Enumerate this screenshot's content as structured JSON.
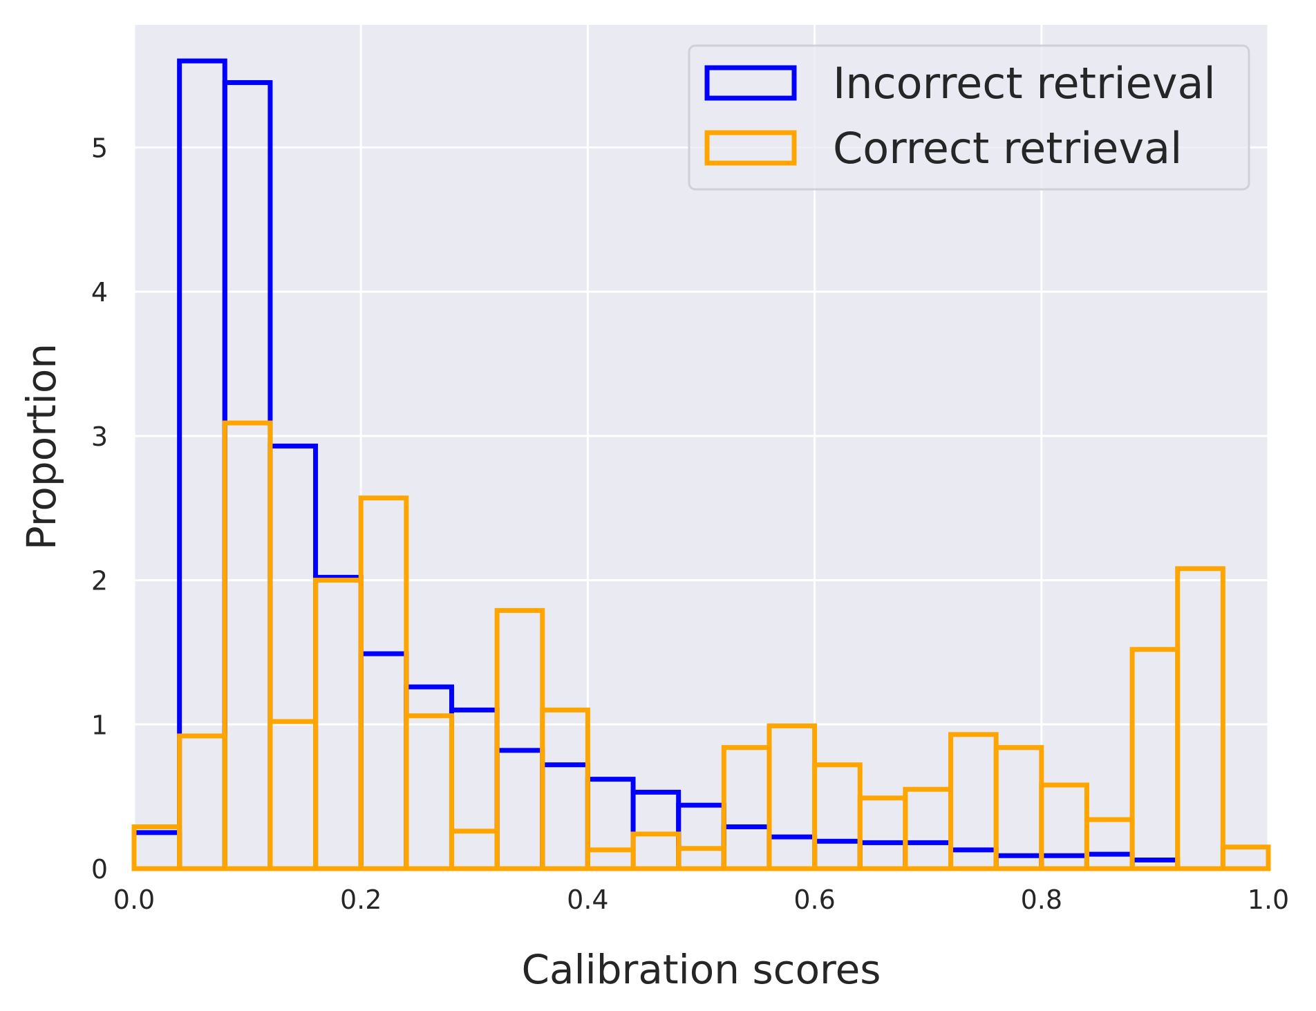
{
  "chart_data": {
    "type": "histogram",
    "xlabel": "Calibration scores",
    "ylabel": "Proportion",
    "xlim": [
      0.0,
      1.0
    ],
    "ylim": [
      0,
      5.85
    ],
    "xticks": [
      "0.0",
      "0.2",
      "0.4",
      "0.6",
      "0.8",
      "1.0"
    ],
    "yticks": [
      "0",
      "1",
      "2",
      "3",
      "4",
      "5"
    ],
    "grid": true,
    "legend_position": "top-right",
    "bin_edges": [
      0.0,
      0.04,
      0.08,
      0.12,
      0.16,
      0.2,
      0.24,
      0.28,
      0.32,
      0.36,
      0.4,
      0.44,
      0.48,
      0.52,
      0.56,
      0.6,
      0.64,
      0.68,
      0.72,
      0.76,
      0.8,
      0.84,
      0.88,
      0.92,
      0.96,
      1.0
    ],
    "series": [
      {
        "name": "Incorrect retrieval",
        "color": "#0000ff",
        "values": [
          0.25,
          5.6,
          5.45,
          2.93,
          2.02,
          1.49,
          1.26,
          1.1,
          0.82,
          0.72,
          0.62,
          0.53,
          0.44,
          0.29,
          0.22,
          0.19,
          0.18,
          0.18,
          0.13,
          0.09,
          0.09,
          0.1,
          0.06,
          0.0,
          0.0
        ]
      },
      {
        "name": "Correct retrieval",
        "color": "#ffa500",
        "values": [
          0.29,
          0.92,
          3.09,
          1.02,
          2.0,
          2.57,
          1.06,
          0.26,
          1.79,
          1.1,
          0.13,
          0.24,
          0.14,
          0.84,
          0.99,
          0.72,
          0.49,
          0.55,
          0.93,
          0.84,
          0.58,
          0.34,
          1.52,
          2.08,
          0.15
        ]
      }
    ]
  }
}
